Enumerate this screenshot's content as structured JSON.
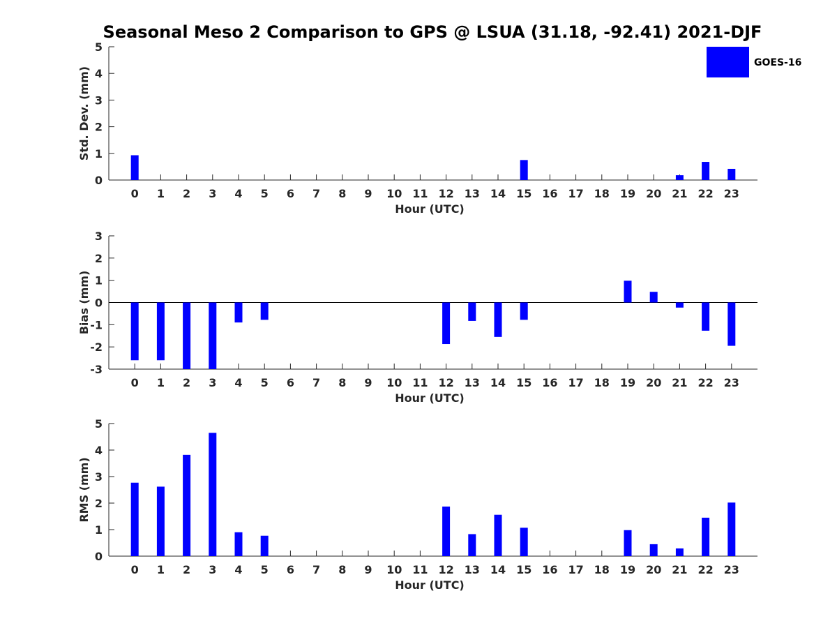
{
  "chart_data": {
    "title": "Seasonal Meso 2 Comparison to GPS @ LSUA (31.18, -92.41) 2021-DJF",
    "legend": {
      "label": "GOES-16",
      "color": "#0000ff",
      "placement": "top-right"
    },
    "panels": [
      {
        "type": "bar",
        "ylabel": "Std. Dev. (mm)",
        "xlabel": "Hour (UTC)",
        "ylim": [
          0,
          5
        ],
        "yticks": [
          "0",
          "1",
          "2",
          "3",
          "4",
          "5"
        ],
        "categories": [
          "0",
          "1",
          "2",
          "3",
          "4",
          "5",
          "6",
          "7",
          "8",
          "9",
          "10",
          "11",
          "12",
          "13",
          "14",
          "15",
          "16",
          "17",
          "18",
          "19",
          "20",
          "21",
          "22",
          "23"
        ],
        "series": [
          {
            "name": "GOES-16",
            "values": [
              0.93,
              0,
              0,
              0,
              0,
              0,
              0,
              0,
              0,
              0,
              0,
              0,
              0,
              0,
              0,
              0.75,
              0,
              0,
              0,
              0,
              0,
              0.18,
              0.68,
              0.42
            ]
          }
        ]
      },
      {
        "type": "bar",
        "ylabel": "Bias (mm)",
        "xlabel": "Hour (UTC)",
        "ylim": [
          -3,
          3
        ],
        "yticks": [
          "-3",
          "-2",
          "-1",
          "0",
          "1",
          "2",
          "3"
        ],
        "categories": [
          "0",
          "1",
          "2",
          "3",
          "4",
          "5",
          "6",
          "7",
          "8",
          "9",
          "10",
          "11",
          "12",
          "13",
          "14",
          "15",
          "16",
          "17",
          "18",
          "19",
          "20",
          "21",
          "22",
          "23"
        ],
        "series": [
          {
            "name": "GOES-16",
            "values": [
              -2.6,
              -2.6,
              -3.0,
              -3.0,
              -0.9,
              -0.78,
              0,
              0,
              0,
              0,
              0,
              0,
              -1.87,
              -0.83,
              -1.55,
              -0.78,
              0,
              0,
              0,
              0.98,
              0.48,
              -0.23,
              -1.27,
              -1.95
            ]
          }
        ]
      },
      {
        "type": "bar",
        "ylabel": "RMS (mm)",
        "xlabel": "Hour (UTC)",
        "ylim": [
          0,
          5
        ],
        "yticks": [
          "0",
          "1",
          "2",
          "3",
          "4",
          "5"
        ],
        "categories": [
          "0",
          "1",
          "2",
          "3",
          "4",
          "5",
          "6",
          "7",
          "8",
          "9",
          "10",
          "11",
          "12",
          "13",
          "14",
          "15",
          "16",
          "17",
          "18",
          "19",
          "20",
          "21",
          "22",
          "23"
        ],
        "series": [
          {
            "name": "GOES-16",
            "values": [
              2.77,
              2.62,
              3.82,
              4.65,
              0.9,
              0.77,
              0,
              0,
              0,
              0,
              0,
              0,
              1.87,
              0.83,
              1.56,
              1.07,
              0,
              0,
              0,
              0.98,
              0.45,
              0.29,
              1.45,
              2.02
            ]
          }
        ]
      }
    ]
  }
}
